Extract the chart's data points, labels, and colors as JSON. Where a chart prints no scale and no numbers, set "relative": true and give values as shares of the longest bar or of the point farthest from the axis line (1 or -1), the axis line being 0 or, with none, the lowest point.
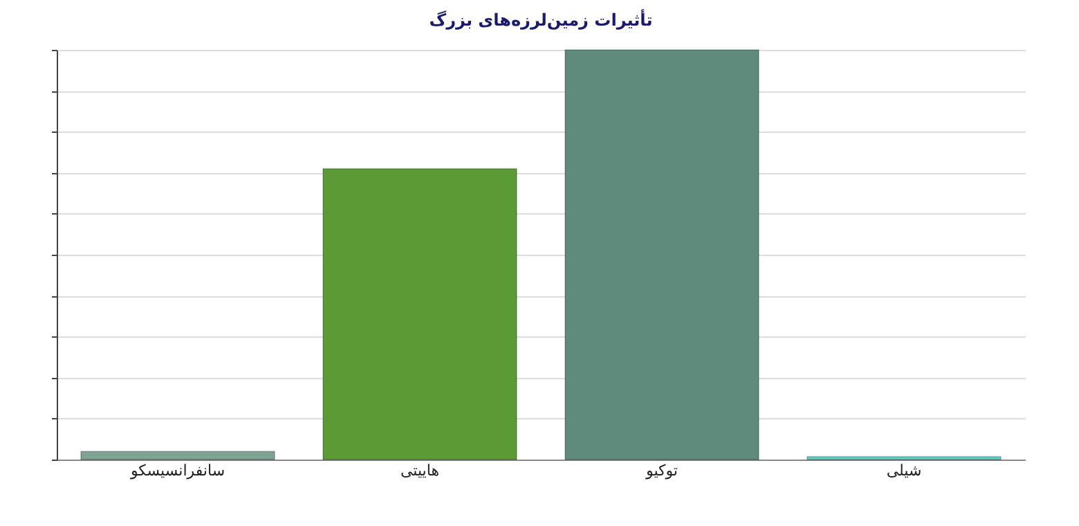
{
  "chart_data": {
    "type": "bar",
    "title": "تأثیرات زمین‌لرزه‌های بزرگ",
    "relative": true,
    "grid": "y",
    "categories": [
      "سانفرانسیسکو",
      "هاییتی",
      "توکیو",
      "شیلی"
    ],
    "values": [
      0.02,
      0.71,
      1,
      0.007
    ],
    "colors": [
      "#7fa493",
      "#5b9a35",
      "#5f8b7c",
      "#5fd3c3"
    ]
  }
}
